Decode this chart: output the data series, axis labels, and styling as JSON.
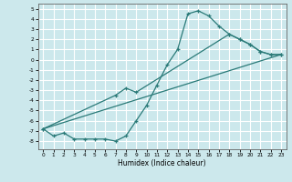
{
  "title": "",
  "xlabel": "Humidex (Indice chaleur)",
  "bg_color": "#cce8ec",
  "grid_color": "#ffffff",
  "line_color": "#2a7a78",
  "xlim": [
    -0.5,
    23.5
  ],
  "ylim": [
    -8.8,
    5.5
  ],
  "yticks": [
    5,
    4,
    3,
    2,
    1,
    0,
    -1,
    -2,
    -3,
    -4,
    -5,
    -6,
    -7,
    -8
  ],
  "xticks": [
    0,
    1,
    2,
    3,
    4,
    5,
    6,
    7,
    8,
    9,
    10,
    11,
    12,
    13,
    14,
    15,
    16,
    17,
    18,
    19,
    20,
    21,
    22,
    23
  ],
  "line1_x": [
    0,
    1,
    2,
    3,
    4,
    5,
    6,
    7,
    8,
    9,
    10,
    11,
    12,
    13,
    14,
    15,
    16,
    17,
    18,
    19,
    20,
    21,
    22,
    23
  ],
  "line1_y": [
    -6.8,
    -7.5,
    -7.2,
    -7.8,
    -7.8,
    -7.8,
    -7.8,
    -8.0,
    -7.5,
    -6.0,
    -4.5,
    -2.5,
    -0.5,
    1.0,
    4.5,
    4.8,
    4.3,
    3.3,
    2.5,
    2.0,
    1.5,
    0.8,
    0.5,
    0.5
  ],
  "line2_x": [
    0,
    7,
    8,
    9,
    18,
    19,
    20,
    21,
    22,
    23
  ],
  "line2_y": [
    -6.8,
    -3.5,
    -2.8,
    -3.2,
    2.5,
    2.0,
    1.5,
    0.8,
    0.5,
    0.5
  ],
  "line3_x": [
    0,
    23
  ],
  "line3_y": [
    -6.8,
    0.5
  ]
}
